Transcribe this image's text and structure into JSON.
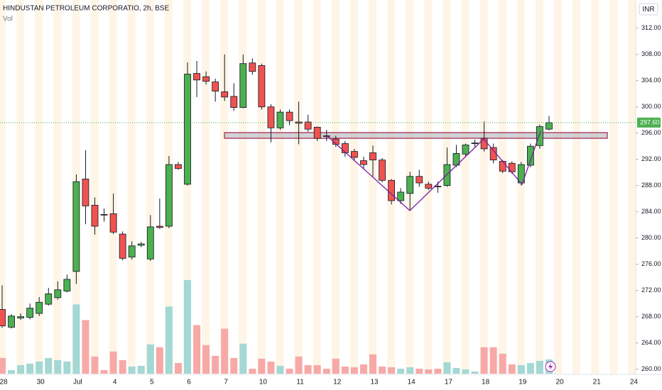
{
  "chart_data": {
    "type": "candlestick",
    "title": "HINDUSTAN PETROLEUM CORPORATIO, 2h, BSE",
    "volume_label": "Vol",
    "currency": "INR",
    "categories": [
      "28",
      null,
      null,
      null,
      "30",
      null,
      null,
      null,
      "Jul",
      null,
      null,
      null,
      "4",
      null,
      null,
      null,
      "5",
      null,
      null,
      null,
      "6",
      null,
      null,
      null,
      "7",
      null,
      null,
      null,
      "10",
      null,
      null,
      null,
      "11",
      null,
      null,
      null,
      "12",
      null,
      null,
      null,
      "13",
      null,
      null,
      null,
      "14",
      null,
      null,
      null,
      "17",
      null,
      null,
      null,
      "18",
      null,
      null,
      null,
      "19",
      null,
      null,
      null,
      "20",
      null,
      null,
      null,
      "21",
      null,
      null,
      null,
      "24"
    ],
    "open": [
      269.1,
      266.4,
      267.8,
      267.9,
      268.5,
      269.9,
      270.9,
      271.9,
      274.9,
      289.0,
      285.0,
      283.6,
      283.7,
      280.6,
      277.1,
      278.9,
      276.8,
      281.8,
      281.8,
      291.2,
      288.2,
      305.1,
      304.6,
      303.8,
      302.3,
      301.6,
      299.9,
      306.7,
      306.3,
      300.0,
      296.8,
      299.2,
      297.7,
      297.7,
      296.9,
      295.6,
      295.1,
      294.4,
      293.2,
      291.8,
      293.0,
      291.9,
      288.8,
      285.7,
      286.8,
      289.4,
      288.2,
      287.9,
      288.0,
      291.1,
      292.8,
      294.4,
      295.2,
      293.8,
      291.7,
      291.4,
      288.4,
      291.1,
      294.1,
      296.6,
      null,
      null,
      null,
      null,
      null,
      null,
      null,
      null,
      null
    ],
    "high": [
      272.8,
      268.4,
      268.5,
      270.0,
      271.0,
      272.4,
      273.4,
      274.4,
      289.7,
      293.4,
      286.2,
      284.5,
      286.8,
      281.0,
      279.5,
      279.4,
      283.5,
      286.0,
      292.5,
      291.6,
      306.8,
      307.0,
      305.4,
      304.3,
      308.0,
      303.6,
      308.0,
      307.4,
      306.6,
      300.4,
      299.6,
      299.6,
      300.8,
      298.8,
      297.0,
      296.5,
      295.6,
      294.8,
      293.6,
      292.4,
      294.1,
      292.2,
      289.0,
      287.6,
      290.1,
      290.4,
      288.6,
      288.6,
      293.8,
      294.2,
      294.4,
      295.0,
      297.8,
      294.4,
      291.9,
      291.7,
      291.6,
      294.4,
      297.3,
      298.6,
      null,
      null,
      null,
      null,
      null,
      null,
      null,
      null,
      null
    ],
    "low": [
      266.3,
      266.2,
      267.5,
      267.6,
      268.1,
      269.7,
      270.6,
      271.7,
      273.0,
      282.1,
      280.5,
      282.5,
      280.6,
      276.6,
      276.7,
      278.6,
      276.5,
      281.4,
      281.5,
      290.4,
      288.0,
      301.5,
      303.4,
      300.8,
      300.9,
      299.4,
      299.8,
      304.9,
      299.6,
      294.6,
      296.5,
      297.2,
      294.3,
      296.2,
      294.8,
      294.8,
      293.9,
      292.4,
      291.9,
      290.5,
      289.4,
      288.5,
      285.1,
      285.2,
      284.3,
      287.8,
      287.3,
      286.9,
      287.8,
      290.8,
      292.5,
      293.9,
      293.2,
      291.4,
      289.9,
      289.8,
      288.0,
      290.8,
      293.6,
      296.4,
      null,
      null,
      null,
      null,
      null,
      null,
      null,
      null,
      null
    ],
    "close": [
      266.6,
      268.1,
      268.0,
      269.3,
      270.2,
      271.5,
      272.1,
      273.7,
      288.6,
      284.9,
      281.8,
      283.5,
      280.9,
      276.9,
      278.8,
      279.1,
      281.7,
      281.6,
      291.2,
      290.6,
      305.0,
      304.1,
      303.9,
      302.4,
      301.5,
      299.9,
      306.6,
      305.4,
      300.0,
      296.8,
      299.2,
      297.9,
      297.5,
      296.6,
      295.2,
      295.5,
      294.3,
      293.0,
      292.3,
      291.2,
      291.9,
      288.8,
      285.7,
      287.0,
      289.4,
      288.4,
      287.6,
      287.8,
      291.2,
      292.9,
      294.2,
      294.5,
      293.6,
      291.9,
      290.2,
      290.1,
      291.2,
      294.0,
      297.0,
      297.6,
      null,
      null,
      null,
      null,
      null,
      null,
      null,
      null,
      null
    ],
    "volume": [
      22,
      5,
      12,
      14,
      17,
      22,
      19,
      17,
      97,
      75,
      24,
      5,
      31,
      19,
      10,
      11,
      41,
      37,
      94,
      15,
      131,
      68,
      40,
      25,
      63,
      22,
      42,
      7,
      21,
      17,
      11,
      7,
      24,
      12,
      12,
      7,
      21,
      10,
      9,
      13,
      27,
      10,
      9,
      7,
      9,
      7,
      6,
      7,
      16,
      8,
      6,
      3,
      37,
      37,
      28,
      13,
      12,
      15,
      18,
      20,
      null,
      null,
      null,
      null,
      null,
      null,
      null,
      null,
      null
    ],
    "up_color": "#4caf50",
    "down_color": "#ef5350",
    "volume_up_color": "#a3d8d4",
    "volume_down_color": "#f7a9a7",
    "ylim": [
      259.2,
      316.3
    ],
    "yticks": [
      {
        "value": 260,
        "label": "260.00"
      },
      {
        "value": 264,
        "label": "264.00"
      },
      {
        "value": 268,
        "label": "268.00"
      },
      {
        "value": 272,
        "label": "272.00"
      },
      {
        "value": 276,
        "label": "276.00"
      },
      {
        "value": 280,
        "label": "280.00"
      },
      {
        "value": 284,
        "label": "284.00"
      },
      {
        "value": 288,
        "label": "288.00"
      },
      {
        "value": 292,
        "label": "292.00"
      },
      {
        "value": 296,
        "label": "296.00"
      },
      {
        "value": 300,
        "label": "300.00"
      },
      {
        "value": 304,
        "label": "304.00"
      },
      {
        "value": 308,
        "label": "308.00"
      },
      {
        "value": 312,
        "label": "312.00"
      }
    ],
    "last_price": {
      "value": 297.6,
      "label": "297.60"
    }
  }
}
